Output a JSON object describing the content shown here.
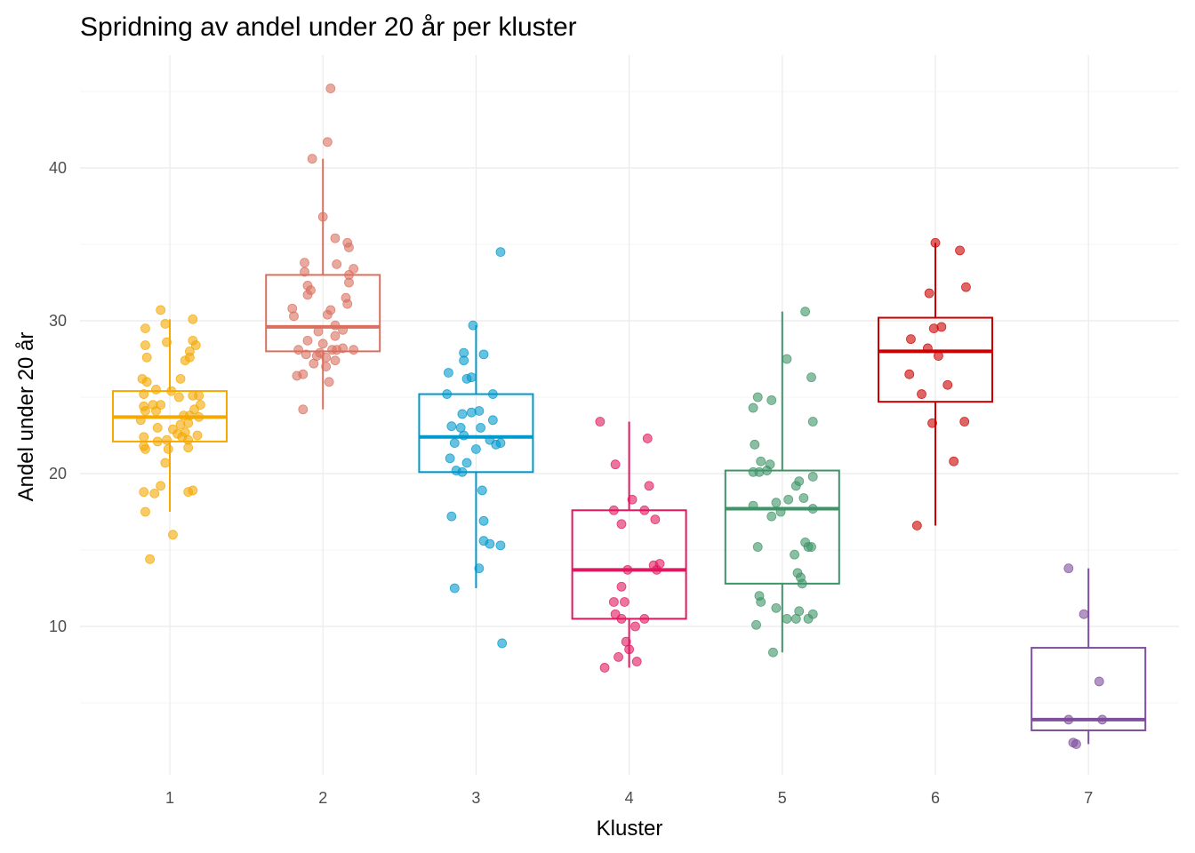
{
  "chart_data": {
    "type": "boxplot",
    "title": "Spridning av andel under 20 år per kluster",
    "xlabel": "Kluster",
    "ylabel": "Andel under 20 år",
    "categories": [
      "1",
      "2",
      "3",
      "4",
      "5",
      "6",
      "7"
    ],
    "ylim": [
      0,
      46
    ],
    "yticks": [
      10,
      20,
      30,
      40
    ],
    "ytick_labels": [
      "10",
      "20",
      "30",
      "40"
    ],
    "grid": true,
    "legend": "none",
    "colors": [
      "#F5A800",
      "#D9705F",
      "#0099CC",
      "#E0185F",
      "#3E9467",
      "#CC0000",
      "#7E4F9C"
    ],
    "boxes": [
      {
        "cluster": "1",
        "whisker_low": 17.5,
        "q1": 22.1,
        "median": 23.7,
        "q3": 25.4,
        "whisker_high": 30.1
      },
      {
        "cluster": "2",
        "whisker_low": 24.2,
        "q1": 28.0,
        "median": 29.6,
        "q3": 33.0,
        "whisker_high": 40.6
      },
      {
        "cluster": "3",
        "whisker_low": 12.5,
        "q1": 20.1,
        "median": 22.4,
        "q3": 25.2,
        "whisker_high": 29.7
      },
      {
        "cluster": "4",
        "whisker_low": 7.3,
        "q1": 10.5,
        "median": 13.7,
        "q3": 17.6,
        "whisker_high": 23.4
      },
      {
        "cluster": "5",
        "whisker_low": 8.3,
        "q1": 12.8,
        "median": 17.7,
        "q3": 20.2,
        "whisker_high": 30.6
      },
      {
        "cluster": "6",
        "whisker_low": 16.6,
        "q1": 24.7,
        "median": 28.0,
        "q3": 30.2,
        "whisker_high": 35.1
      },
      {
        "cluster": "7",
        "whisker_low": 2.3,
        "q1": 3.2,
        "median": 3.9,
        "q3": 8.6,
        "whisker_high": 13.8
      }
    ],
    "points": [
      [
        [
          -0.06,
          30.7
        ],
        [
          0.15,
          30.1
        ],
        [
          -0.16,
          29.5
        ],
        [
          -0.03,
          29.8
        ],
        [
          -0.16,
          28.4
        ],
        [
          -0.02,
          28.6
        ],
        [
          0.15,
          28.7
        ],
        [
          0.17,
          28.4
        ],
        [
          0.13,
          28.0
        ],
        [
          -0.15,
          27.6
        ],
        [
          0.13,
          27.6
        ],
        [
          0.1,
          27.4
        ],
        [
          -0.18,
          26.2
        ],
        [
          -0.15,
          26.0
        ],
        [
          0.07,
          26.2
        ],
        [
          -0.09,
          25.5
        ],
        [
          0.01,
          25.4
        ],
        [
          -0.17,
          25.2
        ],
        [
          0.06,
          25.0
        ],
        [
          0.15,
          25.1
        ],
        [
          0.19,
          25.1
        ],
        [
          -0.17,
          24.4
        ],
        [
          -0.11,
          24.5
        ],
        [
          -0.06,
          24.5
        ],
        [
          0.2,
          24.5
        ],
        [
          -0.16,
          24.1
        ],
        [
          -0.09,
          24.1
        ],
        [
          0.16,
          24.2
        ],
        [
          -0.19,
          23.5
        ],
        [
          0.09,
          23.8
        ],
        [
          0.13,
          23.8
        ],
        [
          0.19,
          23.7
        ],
        [
          0.07,
          23.2
        ],
        [
          0.12,
          23.3
        ],
        [
          -0.08,
          23.0
        ],
        [
          0.02,
          22.9
        ],
        [
          0.05,
          22.6
        ],
        [
          0.1,
          22.7
        ],
        [
          0.08,
          22.4
        ],
        [
          0.18,
          22.5
        ],
        [
          -0.17,
          22.4
        ],
        [
          -0.08,
          22.1
        ],
        [
          -0.02,
          22.2
        ],
        [
          0.12,
          22.2
        ],
        [
          -0.17,
          21.8
        ],
        [
          -0.16,
          21.6
        ],
        [
          -0.01,
          21.6
        ],
        [
          0.12,
          21.7
        ],
        [
          -0.03,
          20.7
        ],
        [
          -0.06,
          19.2
        ],
        [
          -0.17,
          18.8
        ],
        [
          -0.1,
          18.7
        ],
        [
          0.12,
          18.8
        ],
        [
          0.15,
          18.9
        ],
        [
          -0.16,
          17.5
        ],
        [
          0.02,
          16.0
        ],
        [
          -0.13,
          14.4
        ]
      ],
      [
        [
          0.05,
          45.2
        ],
        [
          0.03,
          41.7
        ],
        [
          -0.07,
          40.6
        ],
        [
          0.0,
          36.8
        ],
        [
          0.08,
          35.4
        ],
        [
          0.16,
          35.1
        ],
        [
          0.17,
          34.8
        ],
        [
          -0.12,
          33.8
        ],
        [
          0.09,
          33.7
        ],
        [
          -0.12,
          33.2
        ],
        [
          0.2,
          33.4
        ],
        [
          0.17,
          33.0
        ],
        [
          0.17,
          32.5
        ],
        [
          -0.1,
          32.3
        ],
        [
          -0.08,
          32.0
        ],
        [
          -0.1,
          31.7
        ],
        [
          0.15,
          31.5
        ],
        [
          0.16,
          31.1
        ],
        [
          -0.2,
          30.8
        ],
        [
          -0.19,
          30.3
        ],
        [
          0.05,
          30.7
        ],
        [
          0.03,
          30.4
        ],
        [
          0.08,
          29.7
        ],
        [
          0.13,
          29.4
        ],
        [
          -0.03,
          29.3
        ],
        [
          0.08,
          29.0
        ],
        [
          -0.1,
          28.7
        ],
        [
          0.0,
          28.5
        ],
        [
          -0.16,
          28.1
        ],
        [
          -0.11,
          27.8
        ],
        [
          -0.02,
          27.9
        ],
        [
          0.06,
          28.1
        ],
        [
          0.09,
          28.1
        ],
        [
          0.13,
          28.2
        ],
        [
          0.2,
          28.1
        ],
        [
          -0.04,
          27.7
        ],
        [
          0.02,
          27.6
        ],
        [
          0.08,
          27.4
        ],
        [
          -0.06,
          27.2
        ],
        [
          0.02,
          27.0
        ],
        [
          -0.13,
          26.5
        ],
        [
          -0.17,
          26.4
        ],
        [
          0.04,
          26.0
        ],
        [
          -0.13,
          24.2
        ]
      ],
      [
        [
          0.16,
          34.5
        ],
        [
          -0.02,
          29.7
        ],
        [
          -0.08,
          27.9
        ],
        [
          0.05,
          27.8
        ],
        [
          -0.08,
          27.4
        ],
        [
          -0.18,
          26.6
        ],
        [
          -0.06,
          26.2
        ],
        [
          -0.03,
          26.3
        ],
        [
          -0.19,
          25.2
        ],
        [
          0.11,
          25.2
        ],
        [
          0.02,
          24.1
        ],
        [
          -0.03,
          24.0
        ],
        [
          -0.09,
          23.9
        ],
        [
          0.11,
          23.5
        ],
        [
          -0.16,
          23.1
        ],
        [
          -0.1,
          23.0
        ],
        [
          0.03,
          23.0
        ],
        [
          -0.08,
          22.5
        ],
        [
          0.09,
          22.2
        ],
        [
          0.16,
          22.0
        ],
        [
          0.13,
          21.9
        ],
        [
          -0.14,
          22.0
        ],
        [
          0.0,
          21.6
        ],
        [
          -0.17,
          21.0
        ],
        [
          -0.06,
          20.7
        ],
        [
          -0.13,
          20.2
        ],
        [
          -0.09,
          20.1
        ],
        [
          0.04,
          18.9
        ],
        [
          -0.16,
          17.2
        ],
        [
          0.05,
          16.9
        ],
        [
          0.05,
          15.6
        ],
        [
          0.09,
          15.4
        ],
        [
          0.16,
          15.3
        ],
        [
          0.02,
          13.8
        ],
        [
          -0.14,
          12.5
        ],
        [
          0.17,
          8.9
        ]
      ],
      [
        [
          -0.19,
          23.4
        ],
        [
          0.12,
          22.3
        ],
        [
          -0.09,
          20.6
        ],
        [
          0.13,
          19.2
        ],
        [
          0.02,
          18.3
        ],
        [
          -0.1,
          17.6
        ],
        [
          0.1,
          17.6
        ],
        [
          0.17,
          17.0
        ],
        [
          -0.05,
          16.7
        ],
        [
          0.16,
          14.0
        ],
        [
          0.2,
          14.1
        ],
        [
          -0.01,
          13.7
        ],
        [
          0.18,
          13.7
        ],
        [
          -0.05,
          12.6
        ],
        [
          -0.1,
          11.6
        ],
        [
          -0.03,
          11.6
        ],
        [
          -0.09,
          10.8
        ],
        [
          -0.05,
          10.5
        ],
        [
          0.1,
          10.5
        ],
        [
          0.04,
          10.0
        ],
        [
          -0.02,
          9.0
        ],
        [
          0.0,
          8.5
        ],
        [
          -0.07,
          8.0
        ],
        [
          0.05,
          7.7
        ],
        [
          -0.16,
          7.3
        ]
      ],
      [
        [
          0.15,
          30.6
        ],
        [
          0.03,
          27.5
        ],
        [
          0.19,
          26.3
        ],
        [
          -0.16,
          25.0
        ],
        [
          -0.07,
          24.8
        ],
        [
          -0.19,
          24.3
        ],
        [
          0.2,
          23.4
        ],
        [
          -0.18,
          21.9
        ],
        [
          -0.14,
          20.8
        ],
        [
          -0.08,
          20.6
        ],
        [
          -0.19,
          20.1
        ],
        [
          -0.15,
          20.1
        ],
        [
          -0.1,
          20.2
        ],
        [
          0.2,
          19.8
        ],
        [
          0.11,
          19.5
        ],
        [
          0.09,
          19.2
        ],
        [
          0.04,
          18.3
        ],
        [
          0.14,
          18.4
        ],
        [
          -0.04,
          18.1
        ],
        [
          -0.19,
          17.9
        ],
        [
          0.2,
          17.7
        ],
        [
          -0.01,
          17.5
        ],
        [
          -0.07,
          17.2
        ],
        [
          -0.16,
          15.2
        ],
        [
          0.15,
          15.5
        ],
        [
          0.17,
          15.2
        ],
        [
          0.19,
          15.2
        ],
        [
          0.08,
          14.7
        ],
        [
          0.1,
          13.5
        ],
        [
          0.12,
          13.2
        ],
        [
          0.13,
          12.8
        ],
        [
          -0.15,
          12.0
        ],
        [
          -0.14,
          11.6
        ],
        [
          -0.04,
          11.2
        ],
        [
          0.11,
          11.0
        ],
        [
          0.03,
          10.5
        ],
        [
          0.09,
          10.5
        ],
        [
          0.17,
          10.5
        ],
        [
          0.2,
          10.8
        ],
        [
          -0.17,
          10.1
        ],
        [
          -0.06,
          8.3
        ]
      ],
      [
        [
          0.0,
          35.1
        ],
        [
          0.16,
          34.6
        ],
        [
          0.2,
          32.2
        ],
        [
          -0.04,
          31.8
        ],
        [
          -0.01,
          29.5
        ],
        [
          0.04,
          29.6
        ],
        [
          -0.16,
          28.8
        ],
        [
          -0.05,
          28.2
        ],
        [
          0.02,
          27.7
        ],
        [
          -0.17,
          26.5
        ],
        [
          0.08,
          25.8
        ],
        [
          -0.09,
          25.2
        ],
        [
          -0.02,
          23.3
        ],
        [
          0.19,
          23.4
        ],
        [
          0.12,
          20.8
        ],
        [
          -0.12,
          16.6
        ]
      ],
      [
        [
          -0.13,
          13.8
        ],
        [
          -0.03,
          10.8
        ],
        [
          0.07,
          6.4
        ],
        [
          -0.13,
          3.9
        ],
        [
          0.09,
          3.9
        ],
        [
          -0.1,
          2.4
        ],
        [
          -0.08,
          2.3
        ]
      ]
    ]
  }
}
